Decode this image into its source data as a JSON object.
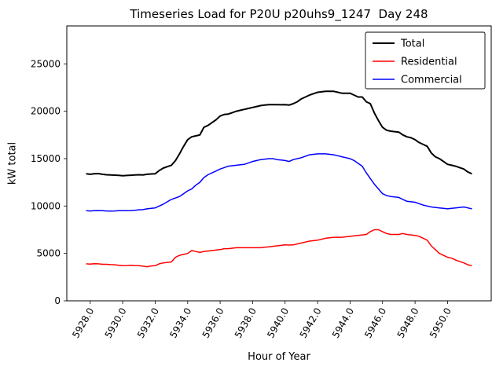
{
  "chart_data": {
    "type": "line",
    "title": "Timeseries Load for P20U p20uhs9_1247  Day 248",
    "xlabel": "Hour of Year",
    "ylabel": "kW total",
    "grid": false,
    "legend_position": "upper right",
    "xlim": [
      5926.56,
      5952.69
    ],
    "ylim": [
      0,
      29000
    ],
    "xticks": [
      5928,
      5930,
      5932,
      5934,
      5936,
      5938,
      5940,
      5942,
      5944,
      5946,
      5948,
      5950
    ],
    "xtick_labels": [
      "5928.0",
      "5930.0",
      "5932.0",
      "5934.0",
      "5936.0",
      "5938.0",
      "5940.0",
      "5942.0",
      "5944.0",
      "5946.0",
      "5948.0",
      "5950.0"
    ],
    "yticks": [
      0,
      5000,
      10000,
      15000,
      20000,
      25000
    ],
    "x": [
      5927.75,
      5928.0,
      5928.25,
      5928.5,
      5928.75,
      5929.0,
      5929.25,
      5929.5,
      5929.75,
      5930.0,
      5930.25,
      5930.5,
      5930.75,
      5931.0,
      5931.25,
      5931.5,
      5931.75,
      5932.0,
      5932.25,
      5932.5,
      5932.75,
      5933.0,
      5933.25,
      5933.5,
      5933.75,
      5934.0,
      5934.25,
      5934.5,
      5934.75,
      5935.0,
      5935.25,
      5935.5,
      5935.75,
      5936.0,
      5936.25,
      5936.5,
      5936.75,
      5937.0,
      5937.25,
      5937.5,
      5937.75,
      5938.0,
      5938.25,
      5938.5,
      5938.75,
      5939.0,
      5939.25,
      5939.5,
      5939.75,
      5940.0,
      5940.25,
      5940.5,
      5940.75,
      5941.0,
      5941.25,
      5941.5,
      5941.75,
      5942.0,
      5942.25,
      5942.5,
      5942.75,
      5943.0,
      5943.25,
      5943.5,
      5943.75,
      5944.0,
      5944.25,
      5944.5,
      5944.75,
      5945.0,
      5945.25,
      5945.5,
      5945.75,
      5946.0,
      5946.25,
      5946.5,
      5946.75,
      5947.0,
      5947.25,
      5947.5,
      5947.75,
      5948.0,
      5948.25,
      5948.5,
      5948.75,
      5949.0,
      5949.25,
      5949.5,
      5949.75,
      5950.0,
      5950.25,
      5950.5,
      5950.75,
      5951.0,
      5951.25,
      5951.5
    ],
    "series": [
      {
        "name": "Total",
        "color": "#000000",
        "linewidth": 2,
        "values": [
          13400,
          13350,
          13400,
          13420,
          13350,
          13300,
          13280,
          13260,
          13230,
          13200,
          13220,
          13250,
          13280,
          13300,
          13280,
          13350,
          13380,
          13400,
          13750,
          14000,
          14150,
          14300,
          14800,
          15500,
          16300,
          17000,
          17300,
          17400,
          17500,
          18300,
          18500,
          18800,
          19100,
          19500,
          19650,
          19700,
          19850,
          20000,
          20100,
          20200,
          20300,
          20400,
          20500,
          20600,
          20650,
          20700,
          20700,
          20700,
          20680,
          20700,
          20650,
          20800,
          21000,
          21300,
          21500,
          21700,
          21850,
          22000,
          22050,
          22100,
          22100,
          22100,
          22000,
          21900,
          21900,
          21900,
          21700,
          21500,
          21500,
          21000,
          20800,
          19800,
          19000,
          18300,
          18000,
          17900,
          17850,
          17800,
          17500,
          17300,
          17200,
          17000,
          16700,
          16500,
          16300,
          15600,
          15200,
          15000,
          14700,
          14400,
          14300,
          14200,
          14050,
          13900,
          13600,
          13400
        ]
      },
      {
        "name": "Residential",
        "color": "#ff0000",
        "linewidth": 1.5,
        "values": [
          3900,
          3880,
          3920,
          3900,
          3850,
          3850,
          3820,
          3800,
          3750,
          3700,
          3720,
          3750,
          3720,
          3700,
          3650,
          3600,
          3680,
          3700,
          3900,
          4000,
          4050,
          4100,
          4600,
          4800,
          4900,
          5000,
          5300,
          5200,
          5100,
          5200,
          5250,
          5300,
          5350,
          5400,
          5500,
          5500,
          5550,
          5600,
          5600,
          5600,
          5600,
          5600,
          5600,
          5600,
          5650,
          5700,
          5750,
          5800,
          5850,
          5900,
          5880,
          5900,
          6000,
          6100,
          6200,
          6300,
          6350,
          6400,
          6500,
          6600,
          6650,
          6700,
          6700,
          6700,
          6750,
          6800,
          6850,
          6900,
          6950,
          7000,
          7300,
          7500,
          7500,
          7300,
          7100,
          7000,
          7000,
          7000,
          7100,
          7000,
          6950,
          6900,
          6800,
          6600,
          6400,
          5800,
          5400,
          5000,
          4800,
          4600,
          4500,
          4300,
          4150,
          4000,
          3800,
          3700
        ]
      },
      {
        "name": "Commercial",
        "color": "#0000ff",
        "linewidth": 1.5,
        "values": [
          9500,
          9480,
          9500,
          9520,
          9500,
          9480,
          9470,
          9480,
          9500,
          9500,
          9500,
          9520,
          9550,
          9600,
          9620,
          9700,
          9750,
          9800,
          10000,
          10200,
          10450,
          10700,
          10850,
          11000,
          11300,
          11600,
          11800,
          12200,
          12500,
          13000,
          13300,
          13500,
          13700,
          13900,
          14050,
          14200,
          14250,
          14300,
          14350,
          14400,
          14550,
          14700,
          14800,
          14900,
          14950,
          15000,
          15000,
          14900,
          14850,
          14800,
          14700,
          14900,
          15000,
          15100,
          15250,
          15400,
          15450,
          15500,
          15500,
          15500,
          15450,
          15400,
          15300,
          15200,
          15100,
          15000,
          14800,
          14500,
          14200,
          13500,
          12900,
          12300,
          11800,
          11300,
          11100,
          11000,
          10950,
          10900,
          10700,
          10500,
          10450,
          10400,
          10250,
          10100,
          10000,
          9900,
          9850,
          9800,
          9750,
          9700,
          9750,
          9800,
          9850,
          9900,
          9800,
          9700
        ]
      }
    ]
  }
}
